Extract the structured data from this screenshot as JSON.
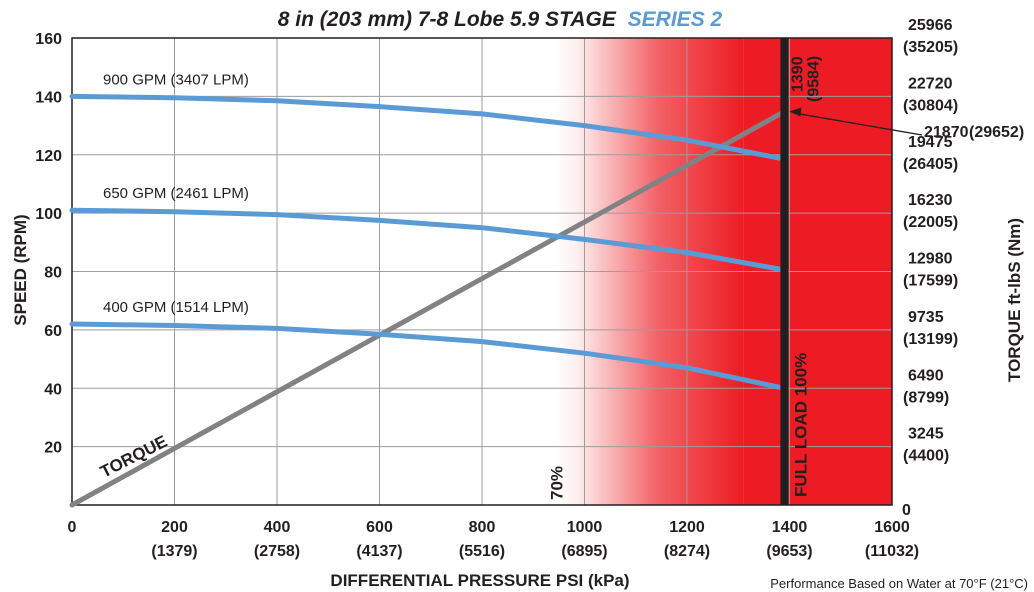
{
  "chart_data": {
    "type": "line",
    "title": {
      "prefix": "8 in (203 mm) 7-8 Lobe 5.9 STAGE",
      "series_label": "SERIES 2",
      "series_color": "#5b9bd5"
    },
    "xlabel": "DIFFERENTIAL PRESSURE  PSI (kPa)",
    "ylabel": "SPEED (RPM)",
    "y2label": "TORQUE  ft-lbS (Nm)",
    "xlim": [
      0,
      1600
    ],
    "ylim": [
      0,
      160
    ],
    "x_ticks": [
      {
        "value": 0,
        "label": "0",
        "sub": ""
      },
      {
        "value": 200,
        "label": "200",
        "sub": "(1379)"
      },
      {
        "value": 400,
        "label": "400",
        "sub": "(2758)"
      },
      {
        "value": 600,
        "label": "600",
        "sub": "(4137)"
      },
      {
        "value": 800,
        "label": "800",
        "sub": "(5516)"
      },
      {
        "value": 1000,
        "label": "1000",
        "sub": "(6895)"
      },
      {
        "value": 1200,
        "label": "1200",
        "sub": "(8274)"
      },
      {
        "value": 1400,
        "label": "1400",
        "sub": "(9653)"
      },
      {
        "value": 1600,
        "label": "1600",
        "sub": "(11032)"
      }
    ],
    "y_ticks": [
      "20",
      "40",
      "60",
      "80",
      "100",
      "120",
      "140",
      "160"
    ],
    "y2_ticks": [
      {
        "value": 0,
        "label": "0",
        "sub": ""
      },
      {
        "value": 20,
        "label": "3245",
        "sub": "(4400)"
      },
      {
        "value": 40,
        "label": "6490",
        "sub": "(8799)"
      },
      {
        "value": 60,
        "label": "9735",
        "sub": "(13199)"
      },
      {
        "value": 80,
        "label": "12980",
        "sub": "(17599)"
      },
      {
        "value": 100,
        "label": "16230",
        "sub": "(22005)"
      },
      {
        "value": 120,
        "label": "19475",
        "sub": "(26405)"
      },
      {
        "value": 140,
        "label": "22720",
        "sub": "(30804)"
      },
      {
        "value": 160,
        "label": "25966",
        "sub": "(35205)"
      }
    ],
    "series": [
      {
        "name": "900 GPM (3407 LPM)",
        "color": "#5b9bd5",
        "x": [
          0,
          200,
          400,
          600,
          800,
          1000,
          1200,
          1390
        ],
        "y": [
          140,
          139.5,
          138.5,
          136.5,
          134,
          130,
          125,
          118.5
        ]
      },
      {
        "name": "650 GPM (2461 LPM)",
        "color": "#5b9bd5",
        "x": [
          0,
          200,
          400,
          600,
          800,
          1000,
          1200,
          1390
        ],
        "y": [
          101,
          100.5,
          99.5,
          97.5,
          95,
          91,
          86.5,
          80.5
        ]
      },
      {
        "name": "400 GPM (1514 LPM)",
        "color": "#5b9bd5",
        "x": [
          0,
          200,
          400,
          600,
          800,
          1000,
          1200,
          1390
        ],
        "y": [
          62,
          61.5,
          60.5,
          58.5,
          56,
          52,
          47,
          40
        ]
      },
      {
        "name": "TORQUE",
        "color": "#808285",
        "x": [
          0,
          1390
        ],
        "y": [
          0,
          134.8
        ]
      }
    ],
    "full_load": {
      "x": 1390,
      "label": "FULL LOAD 100%",
      "value_label": "1390",
      "value_sub": "(9584)"
    },
    "seventy_pct": {
      "x": 973,
      "label": "70%"
    },
    "max_torque": {
      "label": "21870",
      "sub": "(29652)"
    },
    "footnote": "Performance Based on Water at 70°F (21°C)",
    "colors": {
      "red_zone": "#ed1c24",
      "grid": "#9d9d9d",
      "full_load_bar": "#231f20"
    }
  }
}
